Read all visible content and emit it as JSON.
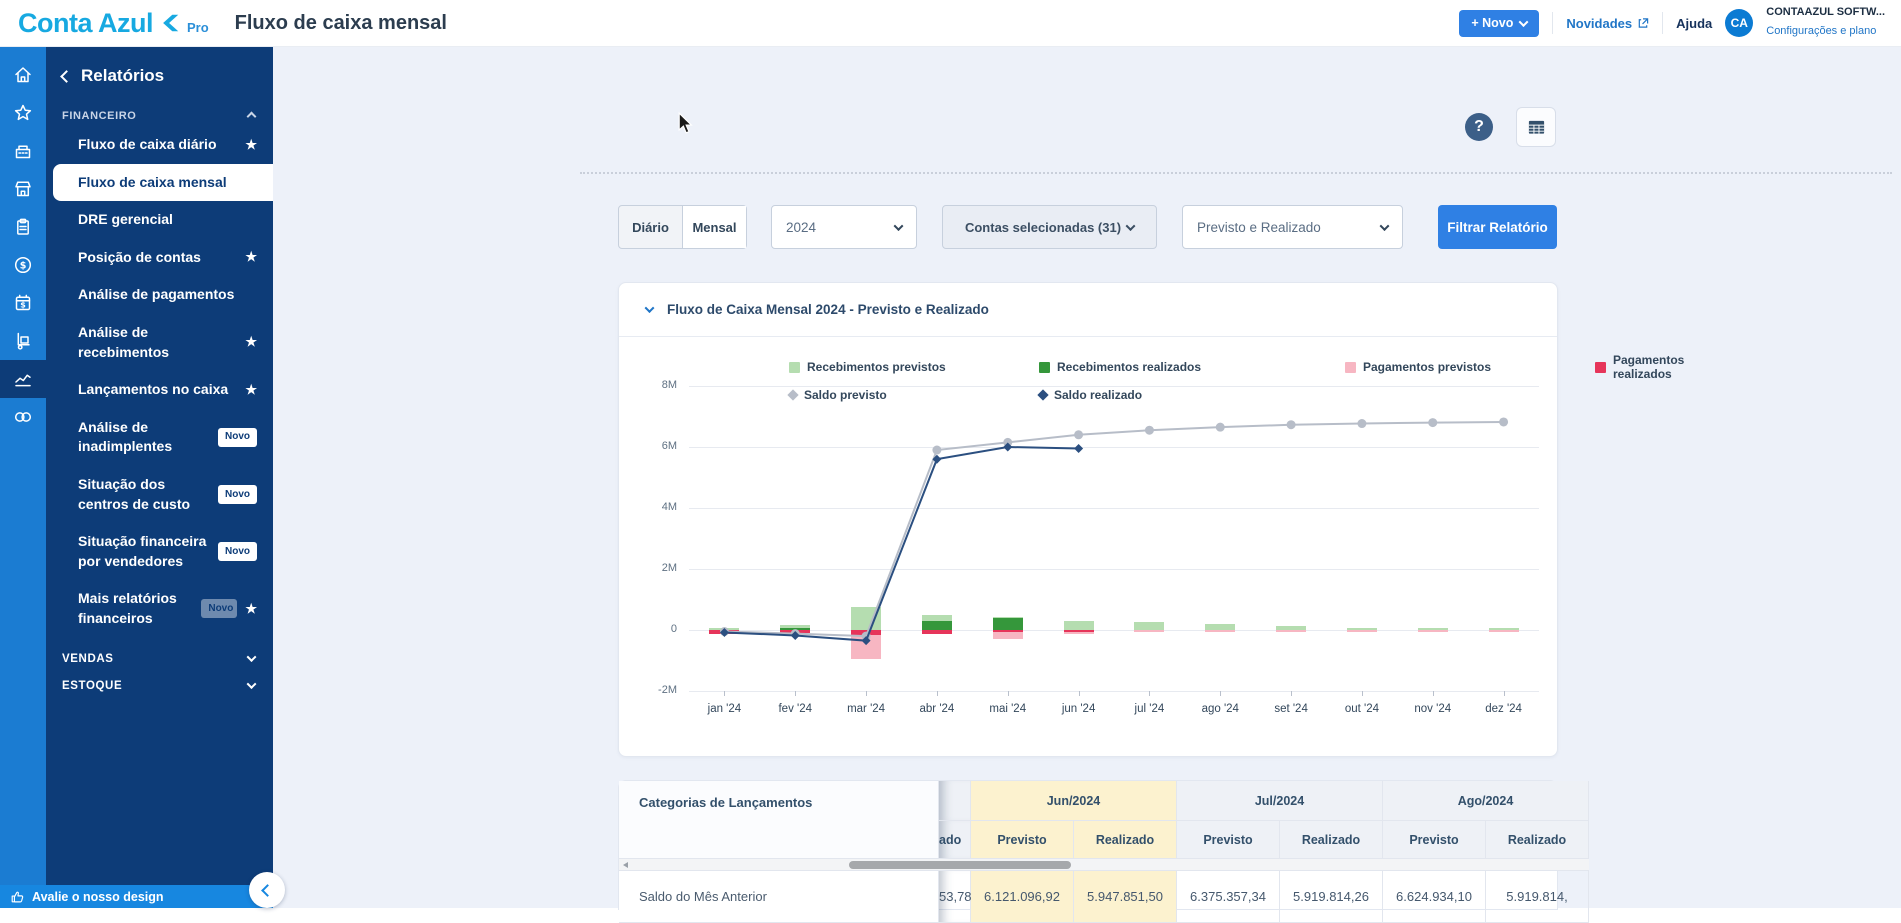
{
  "header": {
    "logo_text": "Conta Azul",
    "logo_pro": "Pro",
    "title": "Fluxo de caixa mensal",
    "new_button": "+ Novo",
    "novidades": "Novidades",
    "ajuda": "Ajuda",
    "avatar_initials": "CA",
    "account_name": "CONTAAZUL SOFTW...",
    "account_link": "Configurações e plano"
  },
  "rail": {
    "active": "line-chart",
    "icons": [
      "home",
      "star",
      "cash-register",
      "store",
      "clipboard",
      "dollar-circle",
      "calendar-dollar",
      "hand-truck",
      "line-chart",
      "link"
    ]
  },
  "sidebar": {
    "back_label": "Relatórios",
    "section_label": "FINANCEIRO",
    "items": [
      {
        "label": "Fluxo de caixa diário",
        "star": true
      },
      {
        "label": "Fluxo de caixa mensal",
        "active": true
      },
      {
        "label": "DRE gerencial"
      },
      {
        "label": "Posição de contas",
        "star": true
      },
      {
        "label": "Análise de pagamentos"
      },
      {
        "label": "Análise de recebimentos",
        "star": true
      },
      {
        "label": "Lançamentos no caixa",
        "star": true
      },
      {
        "label": "Análise de inadimplentes",
        "badge": "Novo"
      },
      {
        "label": "Situação dos centros de custo",
        "badge": "Novo"
      },
      {
        "label": "Situação financeira por vendedores",
        "badge": "Novo"
      },
      {
        "label": "Mais relatórios financeiros",
        "badge": "Novo",
        "badge_fading": true,
        "star": true
      }
    ],
    "groups": [
      "VENDAS",
      "ESTOQUE"
    ],
    "footer_label": "Avalie o nosso design"
  },
  "content": {
    "help_glyph": "?"
  },
  "filters": {
    "daily": "Diário",
    "monthly": "Mensal",
    "year": "2024",
    "accounts": "Contas selecionadas (31)",
    "mode": "Previsto e Realizado",
    "submit": "Filtrar Relatório"
  },
  "chart_card": {
    "title": "Fluxo de Caixa Mensal 2024 - Previsto e Realizado"
  },
  "chart_data": {
    "type": "bar+line",
    "title": "Fluxo de Caixa Mensal 2024 - Previsto e Realizado",
    "x": [
      "jan '24",
      "fev '24",
      "mar '24",
      "abr '24",
      "mai '24",
      "jun '24",
      "jul '24",
      "ago '24",
      "set '24",
      "out '24",
      "nov '24",
      "dez '24"
    ],
    "y_ticks": [
      "8M",
      "6M",
      "4M",
      "2M",
      "0",
      "-2M"
    ],
    "ylim_millions": [
      -2,
      8
    ],
    "grid": true,
    "legend_position": "top",
    "series": [
      {
        "name": "Recebimentos previstos",
        "type": "bar",
        "color": "#b5ddb0",
        "values_millions": [
          0.05,
          0.15,
          0.75,
          0.5,
          0.42,
          0.3,
          0.25,
          0.2,
          0.12,
          0.06,
          0.05,
          0.05
        ]
      },
      {
        "name": "Recebimentos realizados",
        "type": "bar",
        "color": "#35973b",
        "values_millions": [
          0,
          0.02,
          0,
          0.3,
          0.4,
          0,
          0,
          0,
          0,
          0,
          0,
          0
        ]
      },
      {
        "name": "Pagamentos previstos",
        "type": "bar",
        "color": "#f7b6c2",
        "values_millions": [
          -0.1,
          -0.08,
          -0.95,
          -0.12,
          -0.28,
          -0.12,
          -0.07,
          -0.08,
          -0.05,
          -0.05,
          -0.05,
          -0.05
        ]
      },
      {
        "name": "Pagamentos realizados",
        "type": "bar",
        "color": "#e6355a",
        "values_millions": [
          -0.12,
          -0.1,
          -0.18,
          -0.12,
          -0.08,
          -0.05,
          null,
          null,
          null,
          null,
          null,
          null
        ]
      },
      {
        "name": "Saldo previsto",
        "type": "line",
        "marker": "circle",
        "color": "#b7bdc8",
        "values_millions": [
          -0.05,
          -0.12,
          -0.2,
          5.9,
          6.15,
          6.4,
          6.55,
          6.65,
          6.73,
          6.77,
          6.8,
          6.82
        ]
      },
      {
        "name": "Saldo realizado",
        "type": "line",
        "marker": "diamond",
        "color": "#2b4f80",
        "values_millions": [
          -0.08,
          -0.18,
          -0.35,
          5.6,
          6.0,
          5.95,
          null,
          null,
          null,
          null,
          null,
          null
        ]
      }
    ]
  },
  "table": {
    "corner": "Categorias de Lançamentos",
    "sub_previsto": "Previsto",
    "sub_realizado": "Realizado",
    "cut_header": "ado",
    "cut_value": "53,78",
    "row_label": "Saldo do Mês Anterior",
    "months": [
      {
        "label": "Jun/2024",
        "highlight": true,
        "previsto": "6.121.096,92",
        "realizado": "5.947.851,50"
      },
      {
        "label": "Jul/2024",
        "highlight": false,
        "previsto": "6.375.357,34",
        "realizado": "5.919.814,26"
      },
      {
        "label": "Ago/2024",
        "highlight": false,
        "previsto": "6.624.934,10",
        "realizado": "5.919.814,"
      }
    ]
  }
}
